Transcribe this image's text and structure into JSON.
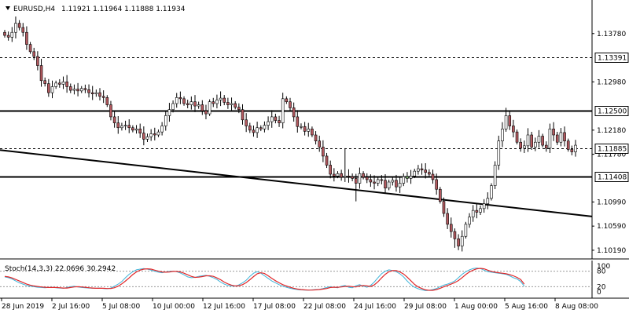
{
  "header": {
    "symbol": "EURUSD,H4",
    "values": "1.11921 1.11964 1.11888 1.11934"
  },
  "indicator": {
    "label": "Stoch(14,3,3) 22.0696 30.2942",
    "levels": [
      80,
      20
    ],
    "tick_labels": [
      "100",
      "0"
    ]
  },
  "colors": {
    "bull": "#ffffff",
    "bear": "#b3595f",
    "bull_special": "#7fc96f",
    "main_line": "#3fb4d9",
    "signal_line": "#e0282a",
    "grid": "#000000"
  },
  "chart_data": {
    "type": "candlestick",
    "symbol": "EURUSD",
    "timeframe": "H4",
    "ylim": [
      1.1015,
      1.1405
    ],
    "y_ticks": [
      "1.13780",
      "1.12980",
      "1.12180",
      "1.11780",
      "1.10990",
      "1.10590",
      "1.10190"
    ],
    "x_ticks": [
      "28 Jun 2019",
      "2 Jul 16:00",
      "5 Jul 08:00",
      "10 Jul 00:00",
      "12 Jul 16:00",
      "17 Jul 08:00",
      "22 Jul 08:00",
      "24 Jul 16:00",
      "29 Jul 08:00",
      "1 Aug 00:00",
      "5 Aug 16:00",
      "8 Aug 08:00"
    ],
    "horizontal_lines": [
      {
        "price": 1.13391,
        "label": "1.13391",
        "style": "dashed"
      },
      {
        "price": 1.125,
        "label": "1.12500",
        "style": "solid"
      },
      {
        "price": 1.11885,
        "label": "1.11885",
        "style": "dashed"
      },
      {
        "price": 1.11408,
        "label": "1.11408",
        "style": "solid"
      }
    ],
    "trendline": {
      "start": 1.1185,
      "end": 1.1075
    },
    "close": [
      1.1375,
      1.1372,
      1.138,
      1.1395,
      1.1388,
      1.138,
      1.136,
      1.1348,
      1.134,
      1.1325,
      1.13,
      1.1295,
      1.128,
      1.129,
      1.1296,
      1.1294,
      1.1298,
      1.129,
      1.1284,
      1.1286,
      1.1283,
      1.1287,
      1.1285,
      1.128,
      1.1278,
      1.128,
      1.1274,
      1.1272,
      1.126,
      1.124,
      1.123,
      1.1222,
      1.1225,
      1.1226,
      1.1222,
      1.1218,
      1.122,
      1.1213,
      1.1203,
      1.1207,
      1.1212,
      1.121,
      1.1215,
      1.1225,
      1.1242,
      1.1252,
      1.1262,
      1.1272,
      1.127,
      1.1262,
      1.126,
      1.1265,
      1.1258,
      1.126,
      1.125,
      1.1245,
      1.1265,
      1.1262,
      1.1268,
      1.1271,
      1.1264,
      1.126,
      1.1262,
      1.1256,
      1.1252,
      1.1235,
      1.1225,
      1.1218,
      1.1214,
      1.1222,
      1.122,
      1.1226,
      1.1232,
      1.124,
      1.1234,
      1.123,
      1.127,
      1.1265,
      1.1255,
      1.124,
      1.1224,
      1.1224,
      1.1216,
      1.122,
      1.121,
      1.12,
      1.119,
      1.1175,
      1.116,
      1.1145,
      1.1142,
      1.1146,
      1.114,
      1.1142,
      1.1141,
      1.1138,
      1.113,
      1.1146,
      1.114,
      1.1136,
      1.1132,
      1.113,
      1.1136,
      1.1135,
      1.1122,
      1.1132,
      1.1135,
      1.1124,
      1.113,
      1.1141,
      1.1138,
      1.1142,
      1.115,
      1.1154,
      1.1152,
      1.1148,
      1.1145,
      1.1136,
      1.112,
      1.11,
      1.108,
      1.1062,
      1.105,
      1.1038,
      1.1026,
      1.1042,
      1.1062,
      1.1074,
      1.1085,
      1.1082,
      1.1088,
      1.1096,
      1.1105,
      1.1126,
      1.116,
      1.12,
      1.122,
      1.1242,
      1.1225,
      1.1215,
      1.1198,
      1.1188,
      1.1192,
      1.121,
      1.119,
      1.1198,
      1.1208,
      1.1193,
      1.1188,
      1.122,
      1.121,
      1.1198,
      1.1214,
      1.12,
      1.1186,
      1.1182,
      1.1193
    ],
    "stoch_main": [
      58,
      55,
      50,
      42,
      35,
      30,
      25,
      22,
      20,
      18,
      17,
      16,
      17,
      18,
      16,
      15,
      14,
      17,
      20,
      22,
      19,
      17,
      16,
      15,
      14,
      14,
      15,
      13,
      12,
      15,
      22,
      30,
      40,
      55,
      68,
      78,
      85,
      88,
      90,
      88,
      84,
      80,
      76,
      74,
      77,
      79,
      80,
      78,
      73,
      66,
      58,
      55,
      56,
      60,
      62,
      64,
      60,
      55,
      48,
      38,
      30,
      25,
      23,
      22,
      27,
      35,
      45,
      60,
      72,
      78,
      72,
      62,
      52,
      42,
      35,
      28,
      22,
      18,
      14,
      11,
      9,
      8,
      7,
      7,
      8,
      9,
      10,
      13,
      17,
      20,
      18,
      16,
      22,
      25,
      18,
      16,
      24,
      28,
      22,
      18,
      25,
      38,
      55,
      70,
      80,
      85,
      82,
      78,
      70,
      58,
      42,
      28,
      18,
      12,
      8,
      5,
      6,
      9,
      13,
      20,
      26,
      30,
      35,
      42,
      55,
      68,
      78,
      85,
      90,
      92,
      90,
      84,
      78,
      76,
      74,
      72,
      70,
      68,
      62,
      55,
      50,
      40,
      22
    ],
    "stoch_signal": [
      60,
      58,
      54,
      48,
      42,
      36,
      30,
      26,
      23,
      21,
      19,
      18,
      17,
      17,
      17,
      16,
      15,
      15,
      17,
      19,
      20,
      19,
      18,
      16,
      15,
      14,
      14,
      14,
      13,
      13,
      16,
      22,
      31,
      42,
      54,
      67,
      77,
      84,
      88,
      89,
      88,
      84,
      80,
      77,
      76,
      77,
      79,
      79,
      77,
      72,
      66,
      60,
      56,
      57,
      59,
      62,
      62,
      60,
      54,
      47,
      38,
      31,
      26,
      23,
      24,
      28,
      36,
      47,
      59,
      70,
      74,
      71,
      62,
      52,
      43,
      35,
      28,
      23,
      18,
      14,
      11,
      9,
      8,
      7,
      7,
      8,
      9,
      11,
      13,
      17,
      18,
      18,
      19,
      21,
      22,
      20,
      19,
      23,
      25,
      23,
      21,
      27,
      39,
      54,
      68,
      78,
      82,
      82,
      77,
      69,
      57,
      43,
      29,
      19,
      13,
      8,
      6,
      6,
      9,
      14,
      20,
      25,
      30,
      36,
      44,
      55,
      67,
      77,
      84,
      89,
      91,
      89,
      84,
      79,
      76,
      74,
      72,
      70,
      67,
      62,
      56,
      48,
      30
    ],
    "special_candles": [
      110
    ]
  }
}
